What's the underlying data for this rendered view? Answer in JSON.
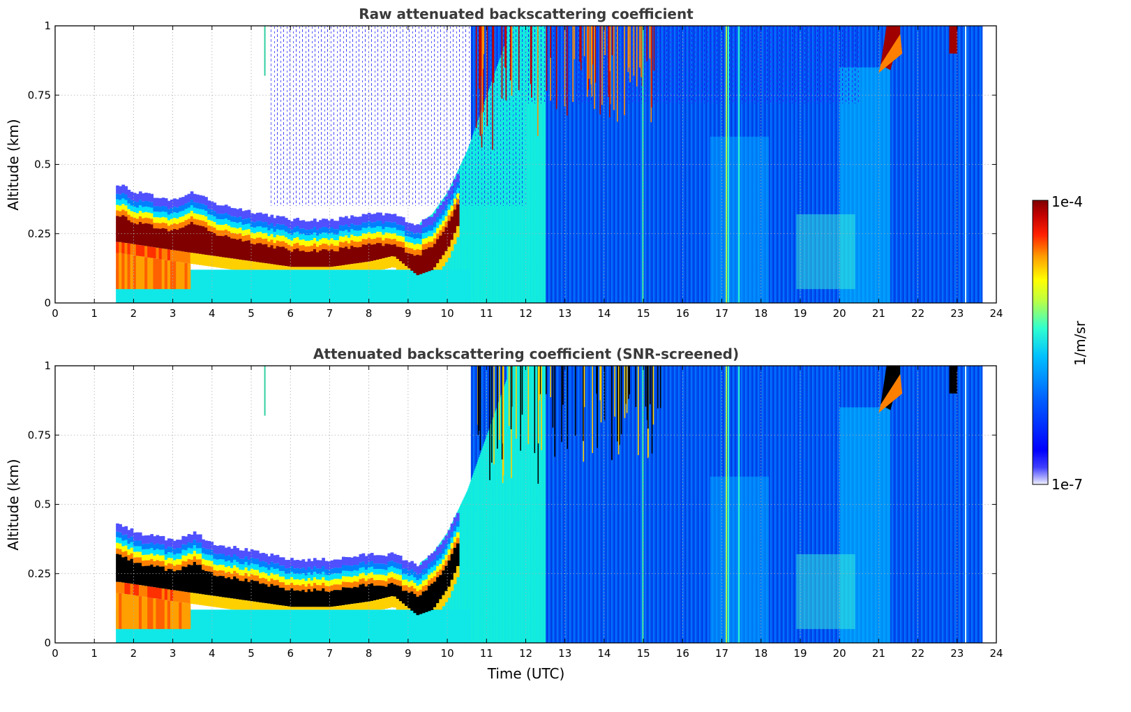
{
  "chart_data": [
    {
      "type": "heatmap",
      "title": "Raw attenuated backscattering coefficient",
      "xlabel": "",
      "ylabel": "Altitude (km)",
      "xlim": [
        0,
        24
      ],
      "ylim": [
        0,
        1
      ],
      "xticks": [
        "0",
        "1",
        "2",
        "3",
        "4",
        "5",
        "6",
        "7",
        "8",
        "9",
        "10",
        "11",
        "12",
        "13",
        "14",
        "15",
        "16",
        "17",
        "18",
        "19",
        "20",
        "21",
        "22",
        "23",
        "24"
      ],
      "yticks": [
        "0",
        "0.25",
        "0.5",
        "0.75",
        "1"
      ],
      "grid": true,
      "data_start_time": 1.55,
      "data_end_time": 23.65,
      "layer_top_km": [
        [
          1.6,
          0.43
        ],
        [
          2,
          0.4
        ],
        [
          3,
          0.37
        ],
        [
          3.5,
          0.4
        ],
        [
          4,
          0.36
        ],
        [
          5,
          0.33
        ],
        [
          6,
          0.3
        ],
        [
          7,
          0.3
        ],
        [
          8,
          0.32
        ],
        [
          8.6,
          0.32
        ],
        [
          9.2,
          0.28
        ],
        [
          9.6,
          0.32
        ],
        [
          10,
          0.4
        ],
        [
          10.5,
          0.55
        ],
        [
          11,
          0.75
        ],
        [
          11.5,
          0.95
        ]
      ],
      "layer_core_km": [
        [
          1.6,
          0.3
        ],
        [
          3,
          0.27
        ],
        [
          4,
          0.25
        ],
        [
          5,
          0.23
        ],
        [
          6,
          0.21
        ],
        [
          7,
          0.21
        ],
        [
          8,
          0.23
        ],
        [
          8.6,
          0.25
        ],
        [
          9.2,
          0.18
        ],
        [
          9.6,
          0.2
        ],
        [
          10,
          0.28
        ],
        [
          10.5,
          0.45
        ],
        [
          11,
          0.65
        ],
        [
          11.5,
          0.85
        ]
      ]
    },
    {
      "type": "heatmap",
      "title": "Attenuated backscattering coefficient (SNR-screened)",
      "xlabel": "Time (UTC)",
      "ylabel": "Altitude (km)",
      "xlim": [
        0,
        24
      ],
      "ylim": [
        0,
        1
      ],
      "xticks": [
        "0",
        "1",
        "2",
        "3",
        "4",
        "5",
        "6",
        "7",
        "8",
        "9",
        "10",
        "11",
        "12",
        "13",
        "14",
        "15",
        "16",
        "17",
        "18",
        "19",
        "20",
        "21",
        "22",
        "23",
        "24"
      ],
      "yticks": [
        "0",
        "0.25",
        "0.5",
        "0.75",
        "1"
      ],
      "grid": true,
      "data_start_time": 1.55,
      "data_end_time": 23.65
    }
  ],
  "colorbar": {
    "label": "1/m/sr",
    "max_label": "1e-4",
    "min_label": "1e-7",
    "colormap": [
      "#e8e8ff",
      "#0000ff",
      "#0080ff",
      "#00e0ff",
      "#40ffc0",
      "#ffff00",
      "#ff8000",
      "#ff0000",
      "#800000"
    ]
  }
}
